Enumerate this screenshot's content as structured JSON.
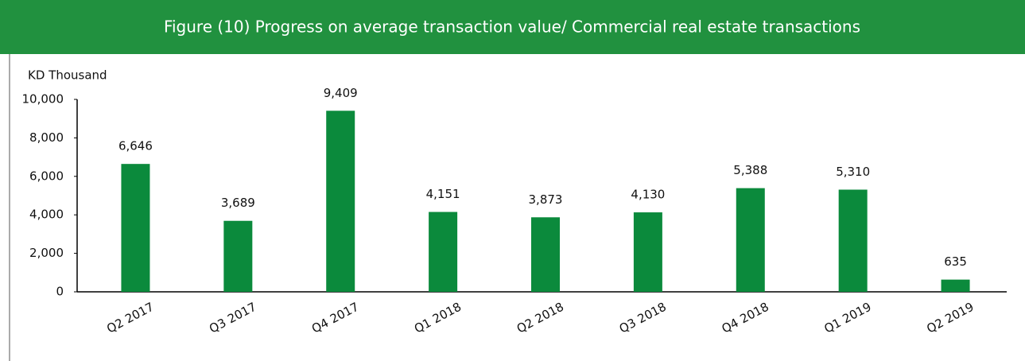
{
  "chart_data": {
    "type": "bar",
    "title": "Figure (10) Progress on average transaction value/ Commercial real estate transactions",
    "y_label": "KD Thousand",
    "categories": [
      "Q2 2017",
      "Q3 2017",
      "Q4 2017",
      "Q1 2018",
      "Q2 2018",
      "Q3 2018",
      "Q4 2018",
      "Q1 2019",
      "Q2 2019"
    ],
    "values": [
      6646,
      3689,
      9409,
      4151,
      3873,
      4130,
      5388,
      5310,
      635
    ],
    "value_labels": [
      "6,646",
      "3,689",
      "9,409",
      "4,151",
      "3,873",
      "4,130",
      "5,388",
      "5,310",
      "635"
    ],
    "color": "#0b8a3c",
    "ylim": [
      0,
      10000
    ],
    "yticks": [
      0,
      {
        "value": 2000,
        "label": "2,000"
      },
      {
        "value": 4000,
        "label": "4,000"
      },
      {
        "value": 6000,
        "label": "6,000"
      },
      {
        "value": 8000,
        "label": "8,000"
      },
      {
        "value": 10000,
        "label": "10,000"
      }
    ],
    "grid": false
  }
}
